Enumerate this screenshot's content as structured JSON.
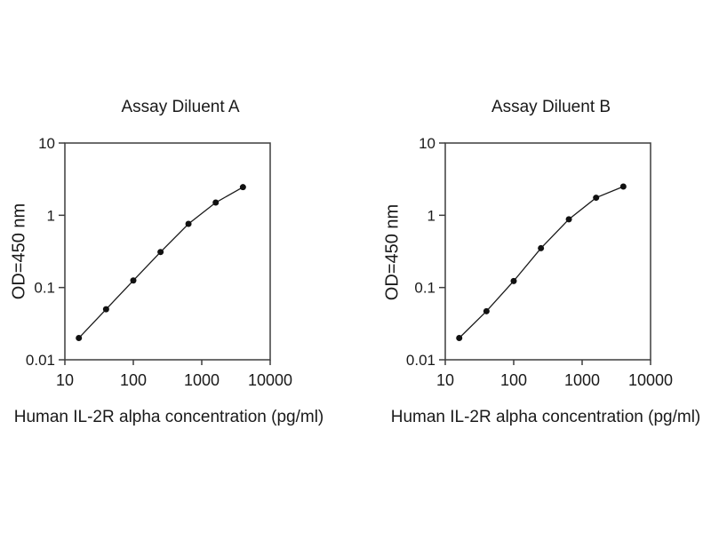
{
  "figure": {
    "background_color": "#ffffff",
    "text_color": "#1a1a1a"
  },
  "chart_data": [
    {
      "type": "line",
      "title": "Assay Diluent A",
      "xlabel": "Human IL-2R alpha concentration (pg/ml)",
      "ylabel": "OD=450 nm",
      "x_scale": "log",
      "y_scale": "log",
      "x": [
        16,
        40,
        100,
        250,
        640,
        1600,
        4000
      ],
      "y": [
        0.02,
        0.05,
        0.125,
        0.31,
        0.76,
        1.5,
        2.45
      ],
      "xlim": [
        10,
        10000
      ],
      "ylim": [
        0.01,
        10
      ],
      "x_ticks": [
        10,
        100,
        1000,
        10000
      ],
      "x_tick_labels": [
        "10",
        "100",
        "1000",
        "10000"
      ],
      "y_ticks": [
        10,
        1,
        0.1,
        0.01
      ],
      "y_tick_labels": [
        "10",
        "1",
        "0.1",
        "0.01"
      ],
      "grid": false,
      "legend": "none",
      "marker": "filled-circle",
      "line_color": "#1a1a1a",
      "marker_color": "#111111",
      "axis_color": "#3d3d3d"
    },
    {
      "type": "line",
      "title": "Assay Diluent B",
      "xlabel": "Human IL-2R alpha concentration (pg/ml)",
      "ylabel": "OD=450 nm",
      "x_scale": "log",
      "y_scale": "log",
      "x": [
        16,
        40,
        100,
        250,
        640,
        1600,
        4000
      ],
      "y": [
        0.02,
        0.047,
        0.123,
        0.35,
        0.88,
        1.75,
        2.5
      ],
      "xlim": [
        10,
        10000
      ],
      "ylim": [
        0.01,
        10
      ],
      "x_ticks": [
        10,
        100,
        1000,
        10000
      ],
      "x_tick_labels": [
        "10",
        "100",
        "1000",
        "10000"
      ],
      "y_ticks": [
        10,
        1,
        0.1,
        0.01
      ],
      "y_tick_labels": [
        "10",
        "1",
        "0.1",
        "0.01"
      ],
      "grid": false,
      "legend": "none",
      "marker": "filled-circle",
      "line_color": "#1a1a1a",
      "marker_color": "#111111",
      "axis_color": "#3d3d3d"
    }
  ]
}
